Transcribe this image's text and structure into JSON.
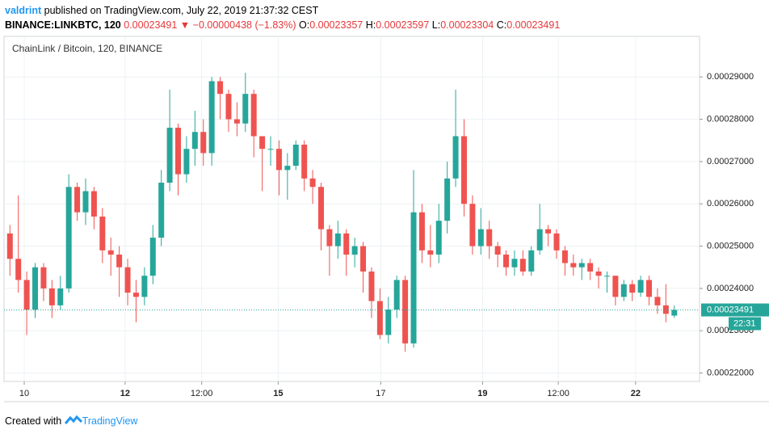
{
  "header": {
    "author": "valdrint",
    "published": "published on TradingView.com, July 22, 2019 21:37:32 CEST",
    "symbol": "BINANCE:LINKBTC, 120",
    "price": "0.00023491",
    "arrow": "▼",
    "change": "−0.00000438 (−1.83%)",
    "ohlc": [
      {
        "label": "O:",
        "value": "0.00023357"
      },
      {
        "label": "H:",
        "value": "0.00023597"
      },
      {
        "label": "L:",
        "value": "0.00023304"
      },
      {
        "label": "C:",
        "value": "0.00023491"
      }
    ]
  },
  "chart_data": {
    "type": "candlestick",
    "title": "ChainLink / Bitcoin, 120, BINANCE",
    "up_color": "#26a69a",
    "down_color": "#ef5350",
    "grid": true,
    "open": [
      0.000253,
      0.000247,
      0.000242,
      0.000235,
      0.000245,
      0.00024,
      0.000236,
      0.00024,
      0.000264,
      0.000258,
      0.000263,
      0.000257,
      0.000249,
      0.000248,
      0.000245,
      0.000239,
      0.000238,
      0.000243,
      0.000252,
      0.000265,
      0.000278,
      0.000267,
      0.000273,
      0.000277,
      0.000272,
      0.000289,
      0.000286,
      0.00028,
      0.000279,
      0.000286,
      0.000276,
      0.000273,
      0.000273,
      0.000268,
      0.000269,
      0.000274,
      0.000266,
      0.000264,
      0.000254,
      0.00025,
      0.000253,
      0.000248,
      0.00025,
      0.000244,
      0.000237,
      0.000229,
      0.000235,
      0.000242,
      0.000227,
      0.000258,
      0.000249,
      0.000248,
      0.000256,
      0.000266,
      0.000276,
      0.00026,
      0.00025,
      0.000254,
      0.00025,
      0.000248,
      0.000245,
      0.000247,
      0.000244,
      0.000249,
      0.000254,
      0.000253,
      0.000249,
      0.000246,
      0.000245,
      0.000246,
      0.000244,
      0.000243,
      0.000243,
      0.000238,
      0.000241,
      0.000239,
      0.000242,
      0.000238,
      0.000236,
      0.00023357
    ],
    "high": [
      0.000255,
      0.000262,
      0.000244,
      0.000246,
      0.000246,
      0.000242,
      0.000243,
      0.000267,
      0.000265,
      0.000266,
      0.000264,
      0.000259,
      0.000252,
      0.00025,
      0.000247,
      0.000242,
      0.000245,
      0.000255,
      0.000268,
      0.000287,
      0.000279,
      0.000276,
      0.000282,
      0.00028,
      0.00029,
      0.00029,
      0.000287,
      0.000284,
      0.000291,
      0.000287,
      0.000276,
      0.000276,
      0.000275,
      0.000272,
      0.000275,
      0.000275,
      0.000268,
      0.000265,
      0.000255,
      0.000256,
      0.000254,
      0.000252,
      0.000251,
      0.000245,
      0.00024,
      0.000238,
      0.000243,
      0.000243,
      0.000268,
      0.00026,
      0.000255,
      0.00026,
      0.00027,
      0.000287,
      0.00028,
      0.000262,
      0.000259,
      0.000256,
      0.000251,
      0.000249,
      0.000249,
      0.000249,
      0.00025,
      0.00026,
      0.000255,
      0.000254,
      0.00025,
      0.000248,
      0.000247,
      0.000247,
      0.000245,
      0.000244,
      0.000243,
      0.000242,
      0.000242,
      0.000243,
      0.000243,
      0.00024,
      0.000241,
      0.00023597
    ],
    "low": [
      0.000243,
      0.000239,
      0.000229,
      0.000233,
      0.000237,
      0.000233,
      0.000235,
      0.000239,
      0.000256,
      0.000255,
      0.000254,
      0.000246,
      0.000243,
      0.000238,
      0.000236,
      0.000232,
      0.000236,
      0.000241,
      0.00025,
      0.000263,
      0.000262,
      0.000265,
      0.000269,
      0.000269,
      0.000269,
      0.00028,
      0.000277,
      0.000276,
      0.000277,
      0.000271,
      0.000263,
      0.000269,
      0.000262,
      0.000261,
      0.000268,
      0.000263,
      0.00026,
      0.000249,
      0.000243,
      0.000247,
      0.000243,
      0.000245,
      0.000239,
      0.000233,
      0.000228,
      0.000227,
      0.000233,
      0.000225,
      0.000226,
      0.000246,
      0.000245,
      0.000246,
      0.000253,
      0.000264,
      0.000257,
      0.000248,
      0.000248,
      0.000247,
      0.000245,
      0.000243,
      0.000243,
      0.000243,
      0.000243,
      0.000248,
      0.00025,
      0.000247,
      0.000243,
      0.000243,
      0.000242,
      0.000242,
      0.00024,
      0.000239,
      0.000236,
      0.000237,
      0.000237,
      0.000238,
      0.000236,
      0.000234,
      0.000232,
      0.00023304
    ],
    "close": [
      0.000247,
      0.000242,
      0.000235,
      0.000245,
      0.00024,
      0.000236,
      0.00024,
      0.000264,
      0.000258,
      0.000263,
      0.000257,
      0.000249,
      0.000248,
      0.000245,
      0.000239,
      0.000238,
      0.000243,
      0.000252,
      0.000265,
      0.000278,
      0.000267,
      0.000273,
      0.000277,
      0.000272,
      0.000289,
      0.000286,
      0.00028,
      0.000279,
      0.000286,
      0.000276,
      0.000273,
      0.000273,
      0.000268,
      0.000269,
      0.000274,
      0.000266,
      0.000264,
      0.000254,
      0.00025,
      0.000253,
      0.000248,
      0.00025,
      0.000244,
      0.000237,
      0.000229,
      0.000235,
      0.000242,
      0.000227,
      0.000258,
      0.000249,
      0.000248,
      0.000256,
      0.000266,
      0.000276,
      0.00026,
      0.00025,
      0.000254,
      0.00025,
      0.000248,
      0.000245,
      0.000247,
      0.000244,
      0.000249,
      0.000254,
      0.000253,
      0.000249,
      0.000246,
      0.000245,
      0.000246,
      0.000244,
      0.000243,
      0.000243,
      0.000238,
      0.000241,
      0.000239,
      0.000242,
      0.000238,
      0.000236,
      0.000234,
      0.00023491
    ],
    "xlim": [
      -0.7,
      82
    ],
    "xticks": [
      {
        "value": 1.7,
        "label": "10"
      },
      {
        "value": 13.7,
        "label": "12"
      },
      {
        "value": 22.8,
        "label": "12:00"
      },
      {
        "value": 31.9,
        "label": "15"
      },
      {
        "value": 44.1,
        "label": "17"
      },
      {
        "value": 56.2,
        "label": "19"
      },
      {
        "value": 65.2,
        "label": "12:00"
      },
      {
        "value": 74.4,
        "label": "22"
      }
    ],
    "ylim": [
      0.000218,
      0.0002996
    ],
    "yticks": [
      {
        "value": 0.00022,
        "label": "0.00022000"
      },
      {
        "value": 0.00023,
        "label": "0.00023000"
      },
      {
        "value": 0.00024,
        "label": "0.00024000"
      },
      {
        "value": 0.00025,
        "label": "0.00025000"
      },
      {
        "value": 0.00026,
        "label": "0.00026000"
      },
      {
        "value": 0.00027,
        "label": "0.00027000"
      },
      {
        "value": 0.00028,
        "label": "0.00028000"
      },
      {
        "value": 0.00029,
        "label": "0.00029000"
      }
    ],
    "last_price": {
      "value": 0.00023491,
      "label": "0.00023491"
    },
    "countdown": "22:31"
  },
  "footer": {
    "created": "Created with",
    "brand": "TradingView"
  }
}
